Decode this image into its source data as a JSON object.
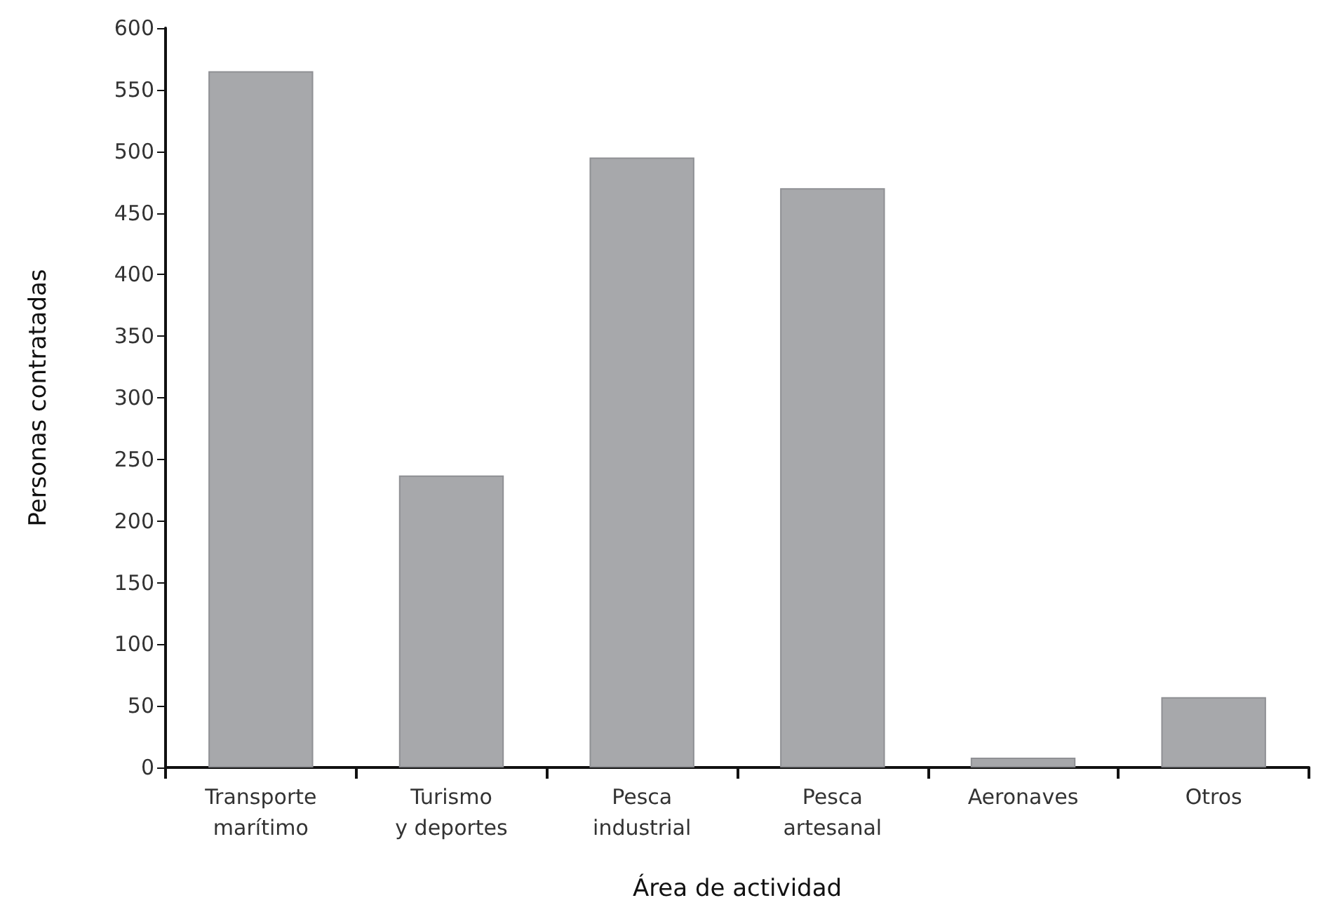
{
  "chart_data": {
    "type": "bar",
    "xlabel": "Área de actividad",
    "ylabel": "Personas contratadas",
    "categories": [
      "Transporte\nmarítimo",
      "Turismo\ny deportes",
      "Pesca\nindustrial",
      "Pesca\nartesanal",
      "Aeronaves",
      "Otros"
    ],
    "values": [
      565,
      237,
      495,
      470,
      8,
      57
    ],
    "color": "#a7a8ab",
    "ylim": [
      0,
      600
    ],
    "yticks": [
      0,
      50,
      100,
      150,
      200,
      250,
      300,
      350,
      400,
      450,
      500,
      550,
      600
    ],
    "grid": false
  }
}
